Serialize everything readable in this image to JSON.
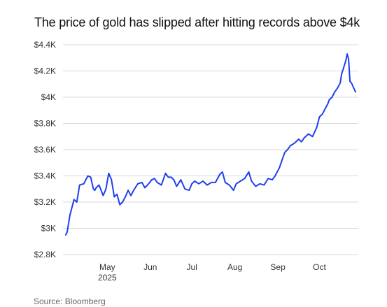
{
  "chart_data": {
    "type": "line",
    "title": "The price of gold has slipped after hitting records above $4k",
    "source": "Source: Bloomberg",
    "y_ticks": [
      "$4.4K",
      "$4.2K",
      "$4K",
      "$3.8K",
      "$3.6K",
      "$3.4K",
      "$3.2K",
      "$3K",
      "$2.8K"
    ],
    "y_tick_values": [
      4400,
      4200,
      4000,
      3800,
      3600,
      3400,
      3200,
      3000,
      2800
    ],
    "ylim": [
      2800,
      4400
    ],
    "x_ticks": [
      {
        "date": "2025-05-01",
        "label": "May",
        "sublabel": "2025"
      },
      {
        "date": "2025-06-01",
        "label": "Jun",
        "sublabel": ""
      },
      {
        "date": "2025-07-01",
        "label": "Jul",
        "sublabel": ""
      },
      {
        "date": "2025-08-01",
        "label": "Aug",
        "sublabel": ""
      },
      {
        "date": "2025-09-01",
        "label": "Sep",
        "sublabel": ""
      },
      {
        "date": "2025-10-01",
        "label": "Oct",
        "sublabel": ""
      }
    ],
    "xlim": [
      "2025-03-27",
      "2025-10-29"
    ],
    "grid": true,
    "line_color": "#1f3ff0",
    "series": [
      {
        "x": [
          "2025-04-01",
          "2025-04-02",
          "2025-04-04",
          "2025-04-07",
          "2025-04-09",
          "2025-04-11",
          "2025-04-14",
          "2025-04-17",
          "2025-04-19",
          "2025-04-21",
          "2025-04-22",
          "2025-04-23",
          "2025-04-25",
          "2025-04-28",
          "2025-04-30",
          "2025-05-02",
          "2025-05-04",
          "2025-05-06",
          "2025-05-08",
          "2025-05-10",
          "2025-05-12",
          "2025-05-14",
          "2025-05-16",
          "2025-05-18",
          "2025-05-20",
          "2025-05-23",
          "2025-05-26",
          "2025-05-28",
          "2025-05-30",
          "2025-06-02",
          "2025-06-04",
          "2025-06-06",
          "2025-06-09",
          "2025-06-12",
          "2025-06-14",
          "2025-06-16",
          "2025-06-18",
          "2025-06-20",
          "2025-06-23",
          "2025-06-26",
          "2025-06-29",
          "2025-07-01",
          "2025-07-03",
          "2025-07-06",
          "2025-07-09",
          "2025-07-12",
          "2025-07-15",
          "2025-07-18",
          "2025-07-21",
          "2025-07-23",
          "2025-07-25",
          "2025-07-28",
          "2025-07-31",
          "2025-08-02",
          "2025-08-05",
          "2025-08-08",
          "2025-08-11",
          "2025-08-13",
          "2025-08-16",
          "2025-08-19",
          "2025-08-22",
          "2025-08-25",
          "2025-08-28",
          "2025-08-30",
          "2025-09-02",
          "2025-09-04",
          "2025-09-06",
          "2025-09-08",
          "2025-09-10",
          "2025-09-13",
          "2025-09-16",
          "2025-09-18",
          "2025-09-20",
          "2025-09-23",
          "2025-09-26",
          "2025-09-29",
          "2025-10-01",
          "2025-10-03",
          "2025-10-05",
          "2025-10-07",
          "2025-10-08",
          "2025-10-10",
          "2025-10-12",
          "2025-10-14",
          "2025-10-16",
          "2025-10-17",
          "2025-10-18",
          "2025-10-20",
          "2025-10-21",
          "2025-10-22",
          "2025-10-23",
          "2025-10-24",
          "2025-10-27"
        ],
        "y": [
          2950,
          2970,
          3100,
          3220,
          3200,
          3330,
          3340,
          3400,
          3390,
          3300,
          3290,
          3310,
          3330,
          3250,
          3300,
          3420,
          3370,
          3240,
          3260,
          3180,
          3200,
          3240,
          3290,
          3250,
          3290,
          3340,
          3350,
          3310,
          3330,
          3370,
          3380,
          3350,
          3330,
          3420,
          3390,
          3390,
          3370,
          3320,
          3370,
          3300,
          3290,
          3340,
          3360,
          3340,
          3360,
          3330,
          3350,
          3350,
          3410,
          3430,
          3350,
          3330,
          3290,
          3340,
          3360,
          3380,
          3430,
          3360,
          3320,
          3340,
          3330,
          3380,
          3370,
          3400,
          3460,
          3520,
          3580,
          3600,
          3630,
          3650,
          3680,
          3660,
          3690,
          3720,
          3700,
          3770,
          3850,
          3870,
          3910,
          3950,
          3980,
          4000,
          4040,
          4070,
          4110,
          4180,
          4210,
          4280,
          4330,
          4290,
          4120,
          4110,
          4040
        ]
      }
    ]
  }
}
